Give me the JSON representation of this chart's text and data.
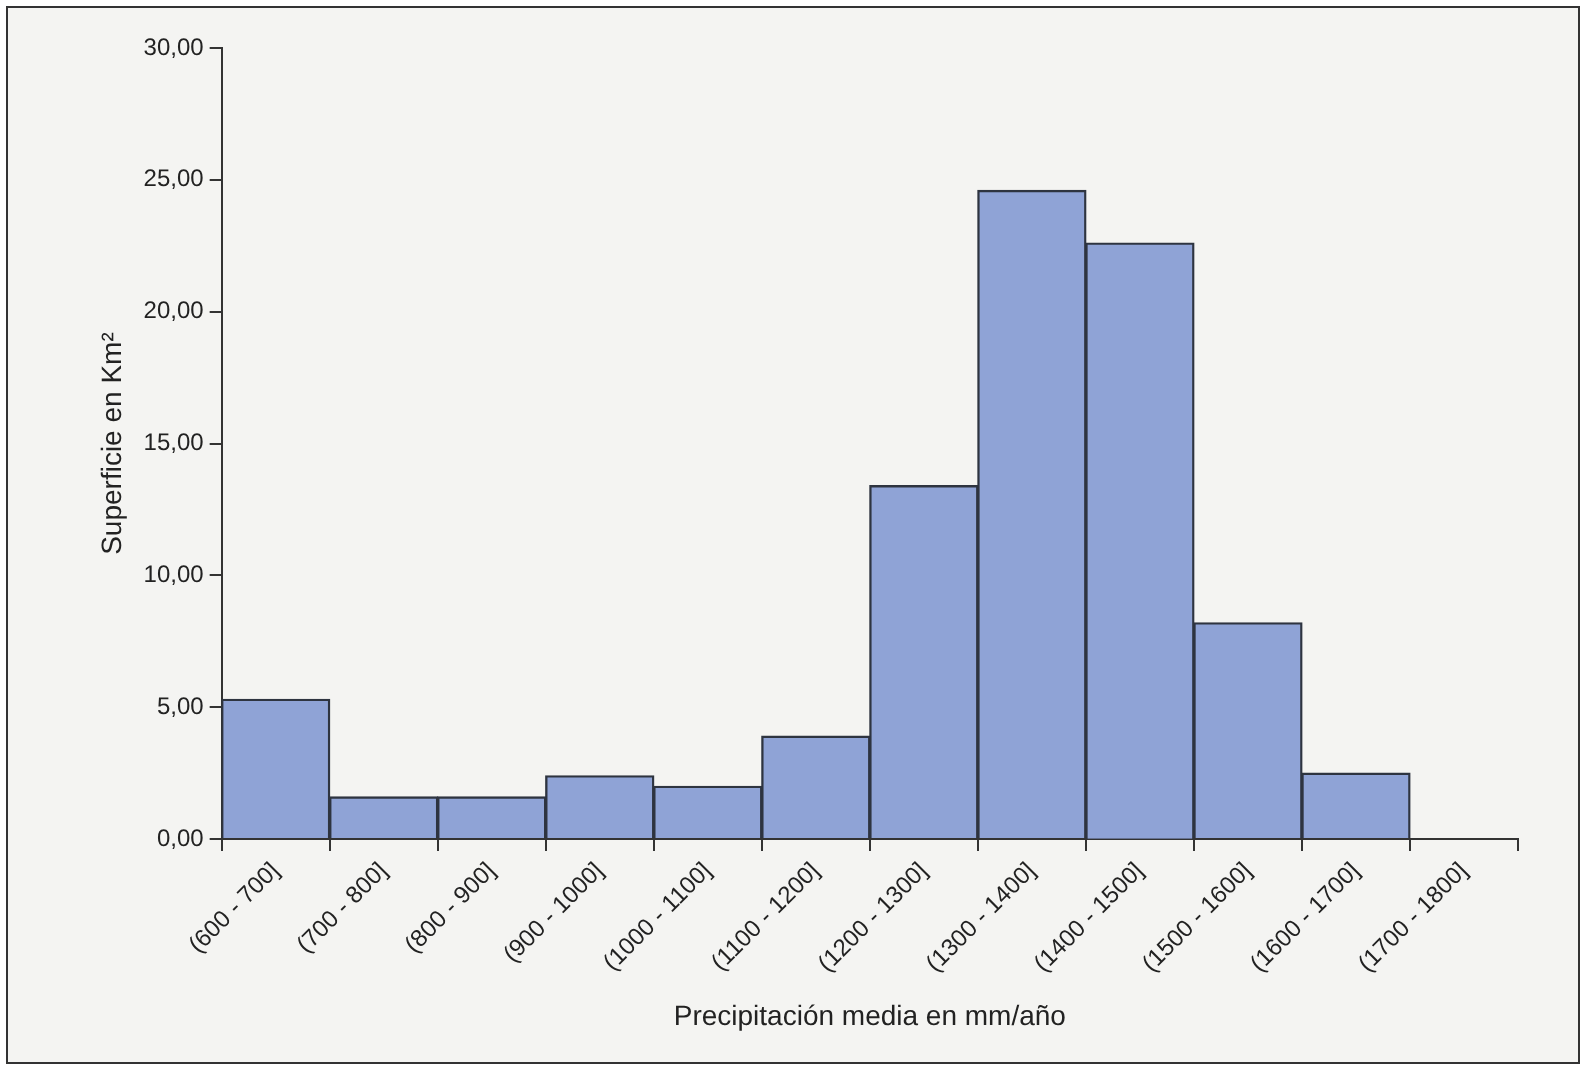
{
  "chart_data": {
    "type": "bar",
    "categories": [
      "(600 - 700]",
      "(700 - 800]",
      "(800 - 900]",
      "(900 - 1000]",
      "(1000 - 1100]",
      "(1100 - 1200]",
      "(1200 - 1300]",
      "(1300 - 1400]",
      "(1400 - 1500]",
      "(1500 - 1600]",
      "(1600 - 1700]",
      "(1700 - 1800]"
    ],
    "values": [
      5.3,
      1.6,
      1.6,
      2.4,
      2.0,
      3.9,
      13.4,
      24.6,
      22.6,
      8.2,
      2.5,
      null
    ],
    "color": "#8fa3d6",
    "xlabel": "Precipitación media en mm/año",
    "ylabel": "Superficie en Km²",
    "ylim": [
      0,
      30
    ],
    "yticks": [
      {
        "value": 0,
        "label": "0,00"
      },
      {
        "value": 5,
        "label": "5,00"
      },
      {
        "value": 10,
        "label": "10,00"
      },
      {
        "value": 15,
        "label": "15,00"
      },
      {
        "value": 20,
        "label": "20,00"
      },
      {
        "value": 25,
        "label": "25,00"
      },
      {
        "value": 30,
        "label": "30,00"
      }
    ],
    "grid": false
  }
}
